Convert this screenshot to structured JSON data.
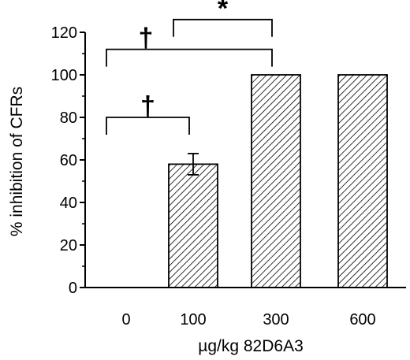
{
  "chart_data": {
    "type": "bar",
    "categories": [
      "0",
      "100",
      "300",
      "600"
    ],
    "values": [
      0,
      58,
      100,
      100
    ],
    "errors": [
      0,
      5,
      0,
      0
    ],
    "xlabel": "µg/kg 82D6A3",
    "ylabel": "% inhibition of CFRs",
    "ylim": [
      0,
      120
    ],
    "yticks": [
      "0",
      "20",
      "40",
      "60",
      "80",
      "100",
      "120"
    ],
    "bar_fill": "diagonal-hatch",
    "grid": false,
    "legend": false,
    "annotations": [
      {
        "symbol": "†",
        "from": "0",
        "to": "100",
        "y": 80
      },
      {
        "symbol": "†",
        "from": "0",
        "to": "300",
        "y": 112
      },
      {
        "symbol": "*",
        "from": "100",
        "to": "300",
        "y": 126
      }
    ]
  },
  "colors": {
    "bar_stroke": "#000000",
    "hatch": "#000000",
    "background": "#ffffff"
  }
}
